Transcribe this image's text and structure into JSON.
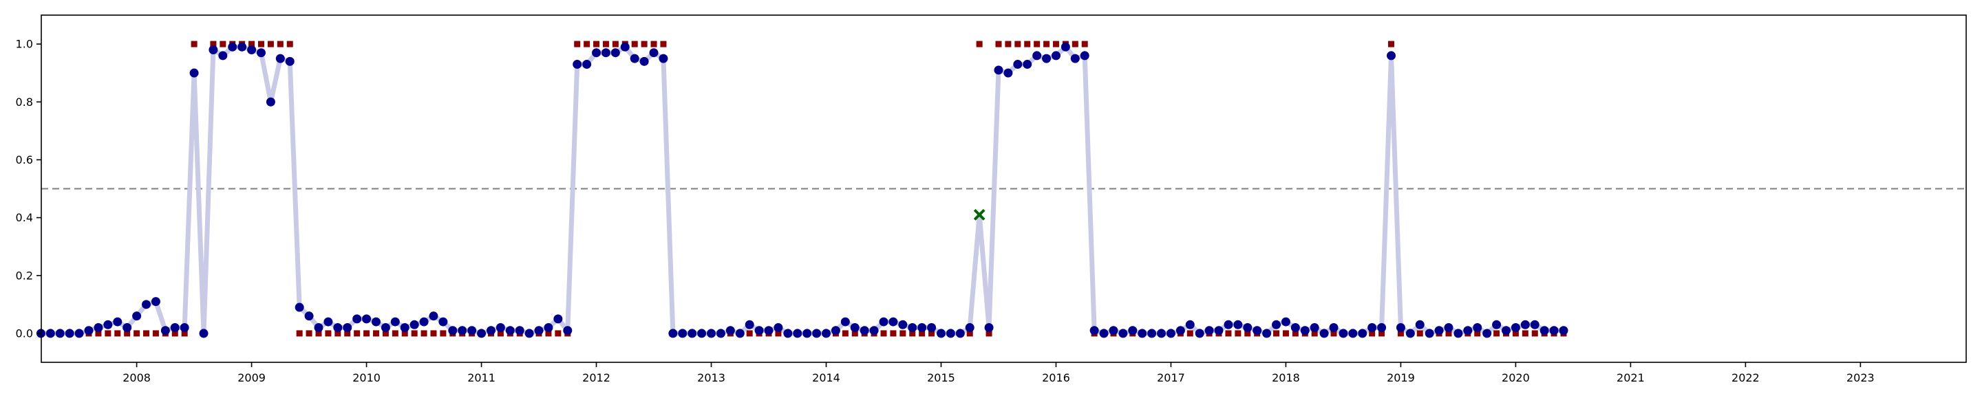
{
  "chart_data": {
    "type": "scatter",
    "title": "",
    "xlabel": "",
    "ylabel": "",
    "xlim": [
      2007.17,
      2023.92
    ],
    "ylim": [
      -0.1,
      1.1
    ],
    "x_tick_labels": [
      "2008",
      "2009",
      "2010",
      "2011",
      "2012",
      "2013",
      "2014",
      "2015",
      "2016",
      "2017",
      "2018",
      "2019",
      "2020",
      "2021",
      "2022",
      "2023"
    ],
    "x_ticks": [
      2008,
      2009,
      2010,
      2011,
      2012,
      2013,
      2014,
      2015,
      2016,
      2017,
      2018,
      2019,
      2020,
      2021,
      2022,
      2023
    ],
    "y_tick_labels": [
      "0.0",
      "0.2",
      "0.4",
      "0.6",
      "0.8",
      "1.0"
    ],
    "y_ticks": [
      0.0,
      0.2,
      0.4,
      0.6,
      0.8,
      1.0
    ],
    "threshold": 0.5,
    "grid": false,
    "legend": "none",
    "colors": {
      "line": "#c8cae6",
      "predicted_point": "#00008b",
      "actual_marker": "#8b0000",
      "misclassified_marker": "#006400",
      "threshold_line": "#808080"
    },
    "series": [
      {
        "key": "predicted",
        "start": "2007-03",
        "step_months": 1,
        "values": [
          0.0,
          0.0,
          0.0,
          0.0,
          0.0,
          0.01,
          0.02,
          0.03,
          0.04,
          0.02,
          0.06,
          0.1,
          0.11,
          0.01,
          0.02,
          0.02,
          0.9,
          0.0,
          0.98,
          0.96,
          0.99,
          0.99,
          0.98,
          0.97,
          0.8,
          0.95,
          0.94,
          0.09,
          0.06,
          0.02,
          0.04,
          0.02,
          0.02,
          0.05,
          0.05,
          0.04,
          0.02,
          0.04,
          0.02,
          0.03,
          0.04,
          0.06,
          0.04,
          0.01,
          0.01,
          0.01,
          0.0,
          0.01,
          0.02,
          0.01,
          0.01,
          0.0,
          0.01,
          0.02,
          0.05,
          0.01,
          0.93,
          0.93,
          0.97,
          0.97,
          0.97,
          0.99,
          0.95,
          0.94,
          0.97,
          0.95,
          0.0,
          0.0,
          0.0,
          0.0,
          0.0,
          0.0,
          0.01,
          0.0,
          0.03,
          0.01,
          0.01,
          0.02,
          0.0,
          0.0,
          0.0,
          0.0,
          0.0,
          0.01,
          0.04,
          0.02,
          0.01,
          0.01,
          0.04,
          0.04,
          0.03,
          0.02,
          0.02,
          0.02,
          0.0,
          0.0,
          0.0,
          0.02,
          0.41,
          0.02,
          0.91,
          0.9,
          0.93,
          0.93,
          0.96,
          0.95,
          0.96,
          0.99,
          0.95,
          0.96,
          0.01,
          0.0,
          0.01,
          0.0,
          0.01,
          0.0,
          0.0,
          0.0,
          0.0,
          0.01,
          0.03,
          0.0,
          0.01,
          0.01,
          0.03,
          0.03,
          0.02,
          0.01,
          0.0,
          0.03,
          0.04,
          0.02,
          0.01,
          0.02,
          0.0,
          0.02,
          0.0,
          0.0,
          0.0,
          0.02,
          0.02,
          0.96,
          0.02,
          0.0,
          0.03,
          0.0,
          0.01,
          0.02,
          0.0,
          0.01,
          0.02,
          0.0,
          0.03,
          0.01,
          0.02,
          0.03,
          0.03,
          0.01,
          0.01,
          0.01
        ]
      },
      {
        "key": "actual",
        "start": "2007-03",
        "step_months": 1,
        "values": [
          0,
          0,
          0,
          0,
          0,
          0,
          0,
          0,
          0,
          0,
          0,
          0,
          0,
          0,
          0,
          0,
          1,
          0,
          1,
          1,
          1,
          1,
          1,
          1,
          1,
          1,
          1,
          0,
          0,
          0,
          0,
          0,
          0,
          0,
          0,
          0,
          0,
          0,
          0,
          0,
          0,
          0,
          0,
          0,
          0,
          0,
          0,
          0,
          0,
          0,
          0,
          0,
          0,
          0,
          0,
          0,
          1,
          1,
          1,
          1,
          1,
          1,
          1,
          1,
          1,
          1,
          0,
          0,
          0,
          0,
          0,
          0,
          0,
          0,
          0,
          0,
          0,
          0,
          0,
          0,
          0,
          0,
          0,
          0,
          0,
          0,
          0,
          0,
          0,
          0,
          0,
          0,
          0,
          0,
          0,
          0,
          0,
          0,
          1,
          0,
          1,
          1,
          1,
          1,
          1,
          1,
          1,
          1,
          1,
          1,
          0,
          0,
          0,
          0,
          0,
          0,
          0,
          0,
          0,
          0,
          0,
          0,
          0,
          0,
          0,
          0,
          0,
          0,
          0,
          0,
          0,
          0,
          0,
          0,
          0,
          0,
          0,
          0,
          0,
          0,
          0,
          1,
          0,
          0,
          0,
          0,
          0,
          0,
          0,
          0,
          0,
          0,
          0,
          0,
          0,
          0,
          0,
          0,
          0,
          0
        ]
      }
    ]
  }
}
